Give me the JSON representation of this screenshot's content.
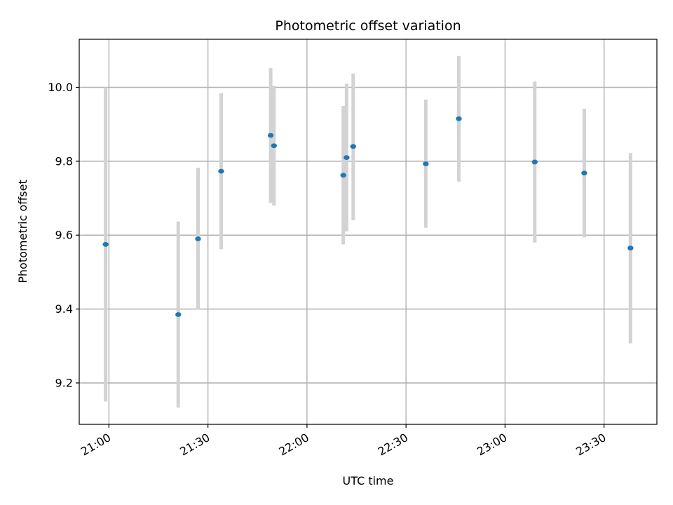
{
  "chart_data": {
    "type": "scatter",
    "title": "Photometric offset variation",
    "xlabel": "UTC time",
    "ylabel": "Photometric offset",
    "xlim": [
      "20:51",
      "23:46"
    ],
    "ylim": [
      9.088,
      10.13
    ],
    "xticks": [
      "21:00",
      "21:30",
      "22:00",
      "22:30",
      "23:00",
      "23:30"
    ],
    "yticks": [
      9.2,
      9.4,
      9.6,
      9.8,
      10.0
    ],
    "ytick_labels": [
      "9.2",
      "9.4",
      "9.6",
      "9.8",
      "10.0"
    ],
    "grid": true,
    "point_color": "#1f77b4",
    "errorbar_color": "#d3d3d3",
    "points": [
      {
        "x": "20:59",
        "y": 9.575,
        "ylow": 9.15,
        "yhigh": 10.0
      },
      {
        "x": "21:21",
        "y": 9.385,
        "ylow": 9.133,
        "yhigh": 9.637
      },
      {
        "x": "21:27",
        "y": 9.59,
        "ylow": 9.398,
        "yhigh": 9.782
      },
      {
        "x": "21:34",
        "y": 9.773,
        "ylow": 9.562,
        "yhigh": 9.984
      },
      {
        "x": "21:49",
        "y": 9.87,
        "ylow": 9.687,
        "yhigh": 10.052
      },
      {
        "x": "21:50",
        "y": 9.842,
        "ylow": 9.68,
        "yhigh": 10.004
      },
      {
        "x": "22:11",
        "y": 9.762,
        "ylow": 9.575,
        "yhigh": 9.95
      },
      {
        "x": "22:12",
        "y": 9.81,
        "ylow": 9.61,
        "yhigh": 10.01
      },
      {
        "x": "22:14",
        "y": 9.84,
        "ylow": 9.64,
        "yhigh": 10.037
      },
      {
        "x": "22:36",
        "y": 9.793,
        "ylow": 9.62,
        "yhigh": 9.967
      },
      {
        "x": "22:46",
        "y": 9.915,
        "ylow": 9.745,
        "yhigh": 10.085
      },
      {
        "x": "23:09",
        "y": 9.798,
        "ylow": 9.58,
        "yhigh": 10.016
      },
      {
        "x": "23:24",
        "y": 9.768,
        "ylow": 9.594,
        "yhigh": 9.942
      },
      {
        "x": "23:38",
        "y": 9.565,
        "ylow": 9.307,
        "yhigh": 9.822
      }
    ]
  }
}
